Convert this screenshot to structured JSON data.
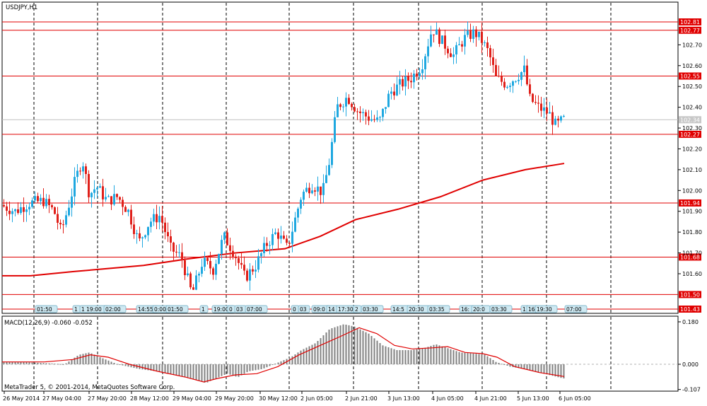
{
  "symbol_title": "USDJPY,H1",
  "macd_label": "MACD(12,26,9) -0.060 -0.052",
  "copyright": "MetaTrader 5, © 2001-2014, MetaQuotes Software Corp.",
  "colors": {
    "bull": "#1fa8e0",
    "bear": "#e0201a",
    "level": "#e00000",
    "ma": "#e00000",
    "grid": "#000000",
    "macd_hist": "#808080",
    "macd_signal": "#e00000"
  },
  "chart_data": [
    {
      "type": "candlestick",
      "title": "USDJPY,H1",
      "ylim": [
        101.43,
        102.84
      ],
      "y_ticks": [
        "102.70",
        "102.60",
        "102.50",
        "102.40",
        "102.30",
        "102.20",
        "102.10",
        "102.00",
        "101.90",
        "101.80",
        "101.70",
        "101.60"
      ],
      "x_labels": [
        "26 May 2014",
        "27 May 04:00",
        "27 May 20:00",
        "28 May 12:00",
        "29 May 04:00",
        "29 May 20:00",
        "30 May 12:00",
        "2 Jun 05:00",
        "2 Jun 21:00",
        "3 Jun 13:00",
        "4 Jun 05:00",
        "4 Jun 21:00",
        "5 Jun 13:00",
        "6 Jun 05:00"
      ],
      "levels": [
        {
          "value": 102.81,
          "label": "102.81"
        },
        {
          "value": 102.77,
          "label": "102.77"
        },
        {
          "value": 102.55,
          "label": "102.55"
        },
        {
          "value": 102.27,
          "label": "102.27"
        },
        {
          "value": 101.94,
          "label": "101.94"
        },
        {
          "value": 101.68,
          "label": "101.68"
        },
        {
          "value": 101.5,
          "label": "101.50"
        },
        {
          "value": 101.43,
          "label": "101.43"
        }
      ],
      "current_price": {
        "value": 102.34,
        "label": "102.34"
      },
      "moving_average": [
        [
          0,
          101.59
        ],
        [
          40,
          101.59
        ],
        [
          100,
          101.61
        ],
        [
          200,
          101.64
        ],
        [
          260,
          101.67
        ],
        [
          330,
          101.7
        ],
        [
          400,
          101.72
        ],
        [
          450,
          101.78
        ],
        [
          500,
          101.86
        ],
        [
          560,
          101.91
        ],
        [
          620,
          101.97
        ],
        [
          680,
          102.05
        ],
        [
          740,
          102.1
        ],
        [
          795,
          102.13
        ]
      ],
      "price_path": [
        [
          0,
          101.93
        ],
        [
          20,
          101.9
        ],
        [
          40,
          101.94
        ],
        [
          60,
          101.95
        ],
        [
          75,
          101.9
        ],
        [
          85,
          101.8
        ],
        [
          95,
          101.92
        ],
        [
          105,
          102.05
        ],
        [
          115,
          102.15
        ],
        [
          125,
          101.98
        ],
        [
          135,
          102.02
        ],
        [
          150,
          101.95
        ],
        [
          165,
          101.97
        ],
        [
          180,
          101.9
        ],
        [
          195,
          101.75
        ],
        [
          210,
          101.85
        ],
        [
          225,
          101.88
        ],
        [
          240,
          101.72
        ],
        [
          255,
          101.68
        ],
        [
          270,
          101.5
        ],
        [
          285,
          101.66
        ],
        [
          300,
          101.62
        ],
        [
          315,
          101.78
        ],
        [
          330,
          101.7
        ],
        [
          345,
          101.58
        ],
        [
          360,
          101.64
        ],
        [
          375,
          101.74
        ],
        [
          390,
          101.8
        ],
        [
          405,
          101.72
        ],
        [
          415,
          101.85
        ],
        [
          425,
          101.98
        ],
        [
          440,
          102.03
        ],
        [
          455,
          101.99
        ],
        [
          465,
          102.15
        ],
        [
          475,
          102.4
        ],
        [
          490,
          102.45
        ],
        [
          505,
          102.38
        ],
        [
          520,
          102.35
        ],
        [
          535,
          102.33
        ],
        [
          550,
          102.47
        ],
        [
          565,
          102.51
        ],
        [
          580,
          102.54
        ],
        [
          595,
          102.6
        ],
        [
          610,
          102.78
        ],
        [
          625,
          102.71
        ],
        [
          640,
          102.65
        ],
        [
          655,
          102.73
        ],
        [
          670,
          102.76
        ],
        [
          680,
          102.72
        ],
        [
          690,
          102.66
        ],
        [
          700,
          102.54
        ],
        [
          715,
          102.51
        ],
        [
          730,
          102.55
        ],
        [
          740,
          102.58
        ],
        [
          748,
          102.44
        ],
        [
          760,
          102.4
        ],
        [
          775,
          102.37
        ],
        [
          785,
          102.31
        ],
        [
          795,
          102.34
        ]
      ],
      "event_tags": [
        {
          "x": 50,
          "label": "01:50"
        },
        {
          "x": 103,
          "label": "1"
        },
        {
          "x": 113,
          "label": "1 19:00"
        },
        {
          "x": 147,
          "label": "02:00"
        },
        {
          "x": 193,
          "label": "14:55"
        },
        {
          "x": 216,
          "label": "0:00"
        },
        {
          "x": 235,
          "label": "01:50"
        },
        {
          "x": 283,
          "label": "1"
        },
        {
          "x": 300,
          "label": "19:00"
        },
        {
          "x": 322,
          "label": "0"
        },
        {
          "x": 332,
          "label": "03"
        },
        {
          "x": 347,
          "label": "07:00"
        },
        {
          "x": 412,
          "label": "0"
        },
        {
          "x": 422,
          "label": "03"
        },
        {
          "x": 441,
          "label": "09:0"
        },
        {
          "x": 462,
          "label": "14"
        },
        {
          "x": 476,
          "label": "17:30"
        },
        {
          "x": 500,
          "label": "2"
        },
        {
          "x": 511,
          "label": "03:30"
        },
        {
          "x": 553,
          "label": "14:5"
        },
        {
          "x": 576,
          "label": "20:30"
        },
        {
          "x": 605,
          "label": "03:35"
        },
        {
          "x": 650,
          "label": "16:"
        },
        {
          "x": 667,
          "label": "20:0"
        },
        {
          "x": 693,
          "label": "03:30"
        },
        {
          "x": 737,
          "label": "1"
        },
        {
          "x": 745,
          "label": "16"
        },
        {
          "x": 757,
          "label": "19:30"
        },
        {
          "x": 799,
          "label": "07:00"
        }
      ]
    },
    {
      "type": "bar",
      "title": "MACD(12,26,9) -0.060 -0.052",
      "ylim": [
        -0.12,
        0.19
      ],
      "y_ticks": [
        "0.180",
        "0.000",
        "-0.107"
      ],
      "macd": [
        [
          0,
          0.01
        ],
        [
          30,
          0.01
        ],
        [
          60,
          0.005
        ],
        [
          90,
          0.0
        ],
        [
          110,
          0.04
        ],
        [
          125,
          0.05
        ],
        [
          140,
          0.03
        ],
        [
          165,
          0.0
        ],
        [
          195,
          -0.02
        ],
        [
          220,
          -0.03
        ],
        [
          245,
          -0.045
        ],
        [
          270,
          -0.06
        ],
        [
          290,
          -0.08
        ],
        [
          300,
          -0.065
        ],
        [
          320,
          -0.04
        ],
        [
          335,
          -0.055
        ],
        [
          350,
          -0.03
        ],
        [
          370,
          -0.02
        ],
        [
          390,
          0.005
        ],
        [
          410,
          0.03
        ],
        [
          425,
          0.06
        ],
        [
          445,
          0.09
        ],
        [
          465,
          0.15
        ],
        [
          485,
          0.17
        ],
        [
          500,
          0.16
        ],
        [
          520,
          0.13
        ],
        [
          540,
          0.08
        ],
        [
          560,
          0.06
        ],
        [
          580,
          0.06
        ],
        [
          600,
          0.07
        ],
        [
          615,
          0.085
        ],
        [
          630,
          0.07
        ],
        [
          650,
          0.05
        ],
        [
          670,
          0.045
        ],
        [
          685,
          0.04
        ],
        [
          700,
          0.01
        ],
        [
          720,
          -0.01
        ],
        [
          740,
          -0.02
        ],
        [
          760,
          -0.035
        ],
        [
          775,
          -0.045
        ],
        [
          795,
          -0.06
        ]
      ],
      "signal": [
        [
          0,
          0.01
        ],
        [
          60,
          0.01
        ],
        [
          100,
          0.02
        ],
        [
          125,
          0.04
        ],
        [
          150,
          0.03
        ],
        [
          180,
          0.0
        ],
        [
          220,
          -0.03
        ],
        [
          260,
          -0.055
        ],
        [
          285,
          -0.075
        ],
        [
          305,
          -0.06
        ],
        [
          330,
          -0.045
        ],
        [
          360,
          -0.04
        ],
        [
          390,
          -0.01
        ],
        [
          420,
          0.04
        ],
        [
          450,
          0.08
        ],
        [
          480,
          0.12
        ],
        [
          505,
          0.155
        ],
        [
          530,
          0.13
        ],
        [
          555,
          0.08
        ],
        [
          580,
          0.065
        ],
        [
          610,
          0.07
        ],
        [
          630,
          0.075
        ],
        [
          655,
          0.05
        ],
        [
          680,
          0.045
        ],
        [
          700,
          0.03
        ],
        [
          725,
          -0.01
        ],
        [
          760,
          -0.035
        ],
        [
          795,
          -0.052
        ]
      ]
    }
  ]
}
